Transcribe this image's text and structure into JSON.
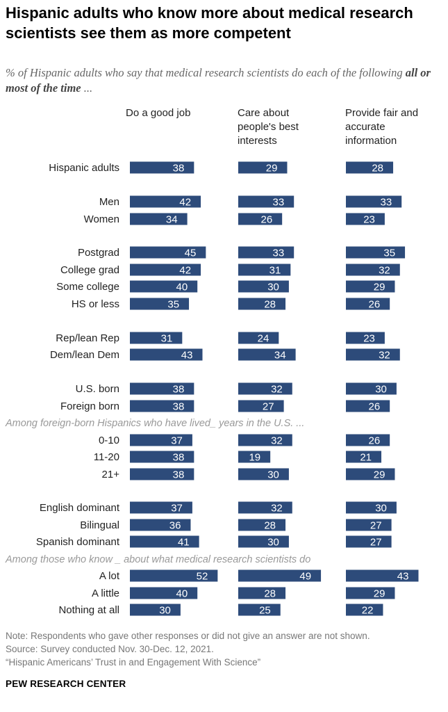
{
  "title": "Hispanic adults who know more about medical research scientists see them as more competent",
  "subtitle_pre": "% of Hispanic adults who say that medical research scientists do each of the following ",
  "subtitle_bold": "all or most of the time",
  "subtitle_post": " ...",
  "colors": {
    "bar": "#2d4b7a",
    "bar_text": "#ffffff",
    "note": "#999999"
  },
  "chart_data": {
    "type": "bar",
    "orientation": "horizontal",
    "series": [
      {
        "name": "Do a good job",
        "values": [
          38,
          42,
          34,
          45,
          42,
          40,
          35,
          31,
          43,
          38,
          38,
          37,
          38,
          38,
          37,
          36,
          41,
          52,
          40,
          30
        ]
      },
      {
        "name": "Care about people's best interests",
        "values": [
          29,
          33,
          26,
          33,
          31,
          30,
          28,
          24,
          34,
          32,
          27,
          32,
          19,
          30,
          32,
          28,
          30,
          49,
          28,
          25
        ]
      },
      {
        "name": "Provide fair and accurate information",
        "values": [
          28,
          33,
          23,
          35,
          32,
          29,
          26,
          23,
          32,
          30,
          26,
          26,
          21,
          29,
          30,
          27,
          27,
          43,
          29,
          22
        ]
      }
    ],
    "categories": [
      "Hispanic adults",
      "Men",
      "Women",
      "Postgrad",
      "College grad",
      "Some college",
      "HS or less",
      "Rep/lean Rep",
      "Dem/lean Dem",
      "U.S. born",
      "Foreign born",
      "0-10",
      "11-20",
      "21+",
      "English dominant",
      "Bilingual",
      "Spanish dominant",
      "A lot",
      "A little",
      "Nothing at all"
    ],
    "notes": [
      {
        "text": "Among foreign-born Hispanics who have lived_ years in the U.S. ...",
        "before": "0-10"
      },
      {
        "text": "Among those who know _ about what medical research scientists do",
        "before": "A lot"
      }
    ]
  },
  "footer": {
    "note": "Note: Respondents who gave other responses or did not give an answer are not shown.",
    "source": "Source: Survey conducted Nov. 30-Dec. 12, 2021.",
    "report": "“Hispanic Americans’ Trust in and Engagement With Science”",
    "brand": "PEW RESEARCH CENTER"
  }
}
